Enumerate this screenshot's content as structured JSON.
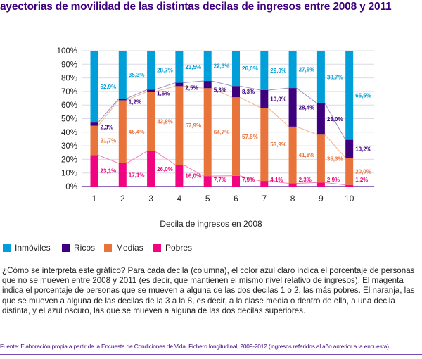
{
  "title": "ayectorias de movilidad de las distintas decilas de ingresos entre 2008 y 2011",
  "chart_data": {
    "type": "bar",
    "stacked": true,
    "categories": [
      "1",
      "2",
      "3",
      "4",
      "5",
      "6",
      "7",
      "8",
      "9",
      "10"
    ],
    "xlabel": "Decila de ingresos en 2008",
    "ylim": [
      0,
      100
    ],
    "yticks": [
      "0%",
      "10%",
      "20%",
      "30%",
      "40%",
      "50%",
      "60%",
      "70%",
      "80%",
      "90%",
      "100%"
    ],
    "grid": true,
    "legend_position": "bottom-left",
    "series": [
      {
        "name": "Pobres",
        "color": "#f0047f",
        "values": [
          23.1,
          17.1,
          26.0,
          16.0,
          7.7,
          7.9,
          4.1,
          2.3,
          2.9,
          1.2
        ],
        "labels": [
          "23,1%",
          "17,1%",
          "26,0%",
          "16,0%",
          "7,7%",
          "7,9%",
          "4,1%",
          "2,3%",
          "2,9%",
          "1,2%"
        ]
      },
      {
        "name": "Medias",
        "color": "#e8743b",
        "values": [
          21.7,
          46.4,
          43.8,
          57.9,
          64.7,
          57.8,
          53.9,
          41.8,
          35.3,
          20.0
        ],
        "labels": [
          "21,7%",
          "46,4%",
          "43,8%",
          "57,9%",
          "64,7%",
          "57,8%",
          "53,9%",
          "41,8%",
          "35,3%",
          "20,0%"
        ]
      },
      {
        "name": "Ricos",
        "color": "#3f007d",
        "values": [
          2.3,
          1.2,
          1.5,
          2.5,
          5.3,
          8.3,
          13.0,
          28.4,
          23.0,
          13.2
        ],
        "labels": [
          "2,3%",
          "1,2%",
          "1,5%",
          "2,5%",
          "5,3%",
          "8,3%",
          "13,0%",
          "28,4%",
          "23,0%",
          "13,2%"
        ]
      },
      {
        "name": "Inmóviles",
        "color": "#009fda",
        "values": [
          52.9,
          35.3,
          28.7,
          23.5,
          22.3,
          26.0,
          29.0,
          27.5,
          38.7,
          65.5
        ],
        "labels": [
          "52,9%",
          "35,3%",
          "28,7%",
          "23,5%",
          "22,3%",
          "26,0%",
          "29,0%",
          "27,5%",
          "38,7%",
          "65,5%"
        ]
      }
    ]
  },
  "legend": [
    {
      "label": "Inmóviles",
      "color": "#009fda"
    },
    {
      "label": "Ricos",
      "color": "#3f007d"
    },
    {
      "label": "Medias",
      "color": "#e8743b"
    },
    {
      "label": "Pobres",
      "color": "#f0047f"
    }
  ],
  "explanation": "¿Cómo se interpreta este gráfico? Para cada decila (columna), el color azul claro indica el porcentaje de personas que no se mueven entre 2008 y 2011 (es decir, que mantienen el mismo nivel relativo de ingresos). El magenta indica el porcentaje de personas que se mueven a alguna de las dos decilas 1 o 2, las más pobres. El naranja, las que se mueven a alguna de las decilas de la 3 a la 8, es decir, a la clase media o dentro de ella, a una decila distinta, y el azul oscuro, las que se mueven a alguna de las dos decilas superiores.",
  "source": "Fuente: Elaboración propia a partir de la Encuesta de Condiciones de Vida. Fichero longitudinal, 2009-2012 (ingresos referidos al año anterior a la encuesta)."
}
